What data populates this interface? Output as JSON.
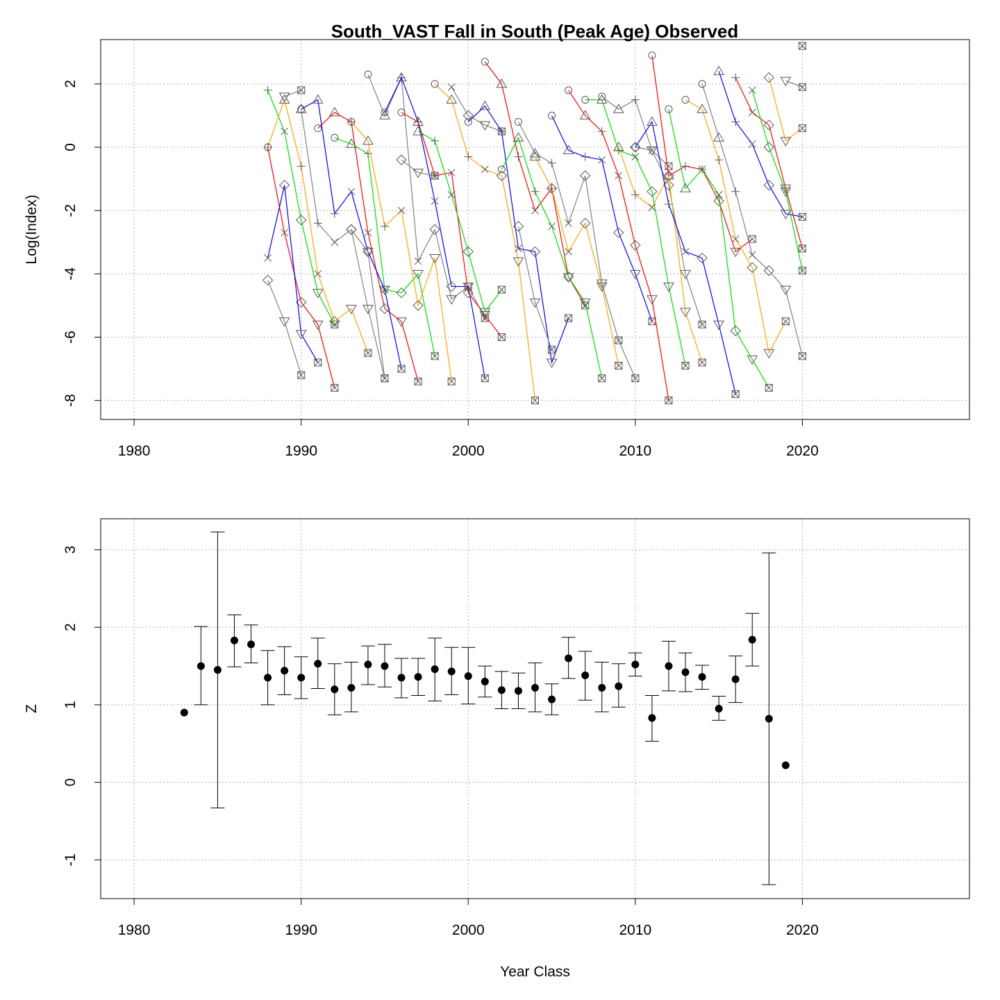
{
  "chart_data": [
    {
      "type": "line",
      "title": "South_VAST Fall in South (Peak Age) Observed",
      "xlabel": "",
      "ylabel": "Log(Index)",
      "xlim": [
        1978,
        2030
      ],
      "ylim": [
        -8.6,
        3.4
      ],
      "xticks": [
        1980,
        1990,
        2000,
        2010,
        2020
      ],
      "yticks": [
        -8,
        -6,
        -4,
        -2,
        0,
        2
      ],
      "grid": true,
      "legend": "none",
      "age_symbols": [
        "circle",
        "triangle-up",
        "plus",
        "x",
        "diamond",
        "triangle-down",
        "boxed-x"
      ],
      "colors": [
        "#ff0000",
        "#00dd00",
        "#0000ff",
        "#ffa500",
        "#808080"
      ],
      "series": [
        {
          "color": "#808080",
          "x": [
            1990,
            1991,
            1992,
            1993,
            1994,
            1995
          ],
          "y": [
            1.2,
            -2.4,
            -3.0,
            -2.6,
            -5.1,
            -7.3
          ]
        },
        {
          "color": "#ff0000",
          "x": [
            1988,
            1989,
            1990,
            1991,
            1992
          ],
          "y": [
            0.0,
            -2.7,
            -4.9,
            -5.6,
            -7.6
          ]
        },
        {
          "color": "#00dd00",
          "x": [
            1988,
            1989,
            1990,
            1991,
            1992
          ],
          "y": [
            1.8,
            0.5,
            -2.3,
            -4.6,
            -5.6
          ]
        },
        {
          "color": "#0000ff",
          "x": [
            1988,
            1989,
            1990,
            1991
          ],
          "y": [
            -3.5,
            -1.2,
            -5.9,
            -6.8
          ]
        },
        {
          "color": "#ffa500",
          "x": [
            1988,
            1989,
            1990,
            1991,
            1992,
            1993,
            1994
          ],
          "y": [
            0.0,
            1.5,
            -0.6,
            -4.0,
            -5.5,
            -5.1,
            -6.5
          ]
        },
        {
          "color": "#808080",
          "x": [
            1988,
            1989,
            1990
          ],
          "y": [
            -4.2,
            -5.5,
            -7.2
          ]
        },
        {
          "color": "#808080",
          "x": [
            1989,
            1990
          ],
          "y": [
            1.6,
            1.8
          ]
        },
        {
          "color": "#ff0000",
          "x": [
            1991,
            1992,
            1993,
            1994,
            1995,
            1996,
            1997
          ],
          "y": [
            0.6,
            1.1,
            0.8,
            -2.7,
            -5.1,
            -5.5,
            -7.4
          ]
        },
        {
          "color": "#00dd00",
          "x": [
            1992,
            1993,
            1994,
            1995,
            1996,
            1997,
            1998
          ],
          "y": [
            0.3,
            0.1,
            -0.2,
            -4.5,
            -4.6,
            -4.0,
            -6.6
          ]
        },
        {
          "color": "#0000ff",
          "x": [
            1990,
            1991,
            1992,
            1993,
            1994,
            1995,
            1996
          ],
          "y": [
            1.2,
            1.5,
            -2.1,
            -1.4,
            -3.3,
            -4.5,
            -7.0
          ]
        },
        {
          "color": "#ffa500",
          "x": [
            1993,
            1994,
            1995,
            1996,
            1997,
            1998,
            1999
          ],
          "y": [
            0.8,
            0.2,
            -2.5,
            -2.0,
            -5.0,
            -3.5,
            -7.4
          ]
        },
        {
          "color": "#808080",
          "x": [
            1993,
            1994,
            1995
          ],
          "y": [
            -2.6,
            -3.3,
            -7.3
          ]
        },
        {
          "color": "#808080",
          "x": [
            1994,
            1995,
            1996,
            1997,
            1998,
            1999,
            2000,
            2001
          ],
          "y": [
            2.3,
            1.0,
            2.2,
            -3.6,
            -2.6,
            -4.8,
            -4.4,
            -5.4
          ]
        },
        {
          "color": "#0000ff",
          "x": [
            1995,
            1996,
            1997,
            1998,
            1999,
            2000,
            2001
          ],
          "y": [
            1.1,
            2.2,
            0.8,
            -1.7,
            -4.4,
            -4.4,
            -7.3
          ]
        },
        {
          "color": "#ff0000",
          "x": [
            1996,
            1997,
            1998,
            1999,
            2000,
            2001,
            2002
          ],
          "y": [
            1.1,
            0.8,
            -0.9,
            -0.8,
            -4.6,
            -5.3,
            -6.0
          ]
        },
        {
          "color": "#00dd00",
          "x": [
            1997,
            1998,
            1999,
            2000,
            2001,
            2002
          ],
          "y": [
            0.5,
            0.2,
            -1.5,
            -3.3,
            -5.2,
            -4.5
          ]
        },
        {
          "color": "#ffa500",
          "x": [
            1998,
            1999,
            2000,
            2001,
            2002,
            2003,
            2004
          ],
          "y": [
            2.0,
            1.5,
            -0.3,
            -0.7,
            -0.9,
            -3.6,
            -8.0
          ]
        },
        {
          "color": "#808080",
          "x": [
            1996,
            1997,
            1998
          ],
          "y": [
            -0.4,
            -0.8,
            -0.9
          ]
        },
        {
          "color": "#808080",
          "x": [
            1999,
            2000,
            2001,
            2002
          ],
          "y": [
            1.9,
            1.0,
            0.7,
            0.5
          ]
        },
        {
          "color": "#0000ff",
          "x": [
            2000,
            2001,
            2002,
            2003,
            2004,
            2005,
            2006
          ],
          "y": [
            0.8,
            1.3,
            0.5,
            -3.2,
            -3.3,
            -6.8,
            -5.4
          ]
        },
        {
          "color": "#ff0000",
          "x": [
            2001,
            2002,
            2003,
            2004,
            2005,
            2006,
            2007
          ],
          "y": [
            2.7,
            2.0,
            -0.3,
            -2.0,
            -1.3,
            -4.1,
            -5.0
          ]
        },
        {
          "color": "#00dd00",
          "x": [
            2002,
            2003,
            2004,
            2005,
            2006,
            2007,
            2008
          ],
          "y": [
            -0.7,
            0.3,
            -1.4,
            -2.5,
            -4.1,
            -4.9,
            -7.3
          ]
        },
        {
          "color": "#808080",
          "x": [
            2003,
            2004,
            2005,
            2006,
            2007,
            2008,
            2009,
            2010
          ],
          "y": [
            0.8,
            -0.2,
            -0.5,
            -2.4,
            -0.9,
            -4.3,
            -6.1,
            -7.3
          ]
        },
        {
          "color": "#ffa500",
          "x": [
            2004,
            2005,
            2006,
            2007,
            2008,
            2009
          ],
          "y": [
            -0.3,
            -1.3,
            -3.3,
            -2.4,
            -4.4,
            -6.9
          ]
        },
        {
          "color": "#808080",
          "x": [
            2003,
            2004,
            2005
          ],
          "y": [
            -2.5,
            -4.9,
            -6.4
          ]
        },
        {
          "color": "#0000ff",
          "x": [
            2005,
            2006,
            2007,
            2008,
            2009,
            2010,
            2011
          ],
          "y": [
            1.0,
            -0.1,
            -0.3,
            -0.4,
            -2.7,
            -4.0,
            -5.5
          ]
        },
        {
          "color": "#ff0000",
          "x": [
            2006,
            2007,
            2008,
            2009,
            2010,
            2011,
            2012
          ],
          "y": [
            1.8,
            1.0,
            0.5,
            -0.9,
            -3.1,
            -4.8,
            -8.0
          ]
        },
        {
          "color": "#00dd00",
          "x": [
            2007,
            2008,
            2009,
            2010,
            2011,
            2012,
            2013
          ],
          "y": [
            1.5,
            1.5,
            -0.1,
            -0.3,
            -1.4,
            -4.4,
            -6.9
          ]
        },
        {
          "color": "#808080",
          "x": [
            2008,
            2009,
            2010,
            2011,
            2012,
            2013,
            2014
          ],
          "y": [
            1.6,
            1.2,
            1.5,
            -0.1,
            -1.2,
            -4.0,
            -5.6
          ]
        },
        {
          "color": "#ffa500",
          "x": [
            2009,
            2010,
            2011,
            2012,
            2013,
            2014
          ],
          "y": [
            0.0,
            -1.5,
            -1.9,
            -0.9,
            -5.2,
            -6.8
          ]
        },
        {
          "color": "#808080",
          "x": [
            2010,
            2011,
            2012
          ],
          "y": [
            0.0,
            -0.1,
            -0.6
          ]
        },
        {
          "color": "#0000ff",
          "x": [
            2010,
            2011,
            2012,
            2013,
            2014,
            2015,
            2016
          ],
          "y": [
            0.0,
            0.8,
            -1.8,
            -3.3,
            -3.5,
            -5.6,
            -7.8
          ]
        },
        {
          "color": "#ff0000",
          "x": [
            2011,
            2012,
            2013,
            2014,
            2015,
            2016,
            2017
          ],
          "y": [
            2.9,
            -0.9,
            -0.6,
            -0.7,
            -1.7,
            -3.3,
            -2.9
          ]
        },
        {
          "color": "#00dd00",
          "x": [
            2012,
            2013,
            2014,
            2015,
            2016,
            2017,
            2018
          ],
          "y": [
            1.2,
            -1.3,
            -0.7,
            -1.5,
            -5.8,
            -6.7,
            -7.6
          ]
        },
        {
          "color": "#ffa500",
          "x": [
            2013,
            2014,
            2015,
            2016,
            2017,
            2018,
            2019
          ],
          "y": [
            1.5,
            1.2,
            -0.4,
            -2.9,
            -3.8,
            -6.5,
            -5.5
          ]
        },
        {
          "color": "#808080",
          "x": [
            2014,
            2015,
            2016,
            2017,
            2018,
            2019,
            2020
          ],
          "y": [
            2.0,
            0.3,
            -1.4,
            -3.4,
            -3.9,
            -4.5,
            -6.6
          ]
        },
        {
          "color": "#0000ff",
          "x": [
            2015,
            2016,
            2017,
            2018,
            2019,
            2020
          ],
          "y": [
            2.4,
            0.8,
            0.1,
            -1.2,
            -2.1,
            -2.2
          ]
        },
        {
          "color": "#ff0000",
          "x": [
            2016,
            2017,
            2018,
            2019,
            2020
          ],
          "y": [
            2.2,
            1.1,
            0.7,
            -1.3,
            -3.2
          ]
        },
        {
          "color": "#00dd00",
          "x": [
            2017,
            2018,
            2019,
            2020
          ],
          "y": [
            1.8,
            0.0,
            -1.4,
            -3.9
          ]
        },
        {
          "color": "#ffa500",
          "x": [
            2018,
            2019,
            2020
          ],
          "y": [
            2.2,
            0.2,
            0.6
          ]
        },
        {
          "color": "#808080",
          "x": [
            2019,
            2020
          ],
          "y": [
            2.1,
            1.9
          ]
        },
        {
          "color": "#808080",
          "x": [
            2020
          ],
          "y": [
            3.2
          ]
        }
      ]
    },
    {
      "type": "scatter",
      "title": "",
      "xlabel": "Year Class",
      "ylabel": "Z",
      "xlim": [
        1978,
        2030
      ],
      "ylim": [
        -1.5,
        3.4
      ],
      "xticks": [
        1980,
        1990,
        2000,
        2010,
        2020
      ],
      "yticks": [
        -1,
        0,
        1,
        2,
        3
      ],
      "grid": true,
      "x": [
        1983,
        1984,
        1985,
        1986,
        1987,
        1988,
        1989,
        1990,
        1991,
        1992,
        1993,
        1994,
        1995,
        1996,
        1997,
        1998,
        1999,
        2000,
        2001,
        2002,
        2003,
        2004,
        2005,
        2006,
        2007,
        2008,
        2009,
        2010,
        2011,
        2012,
        2013,
        2014,
        2015,
        2016,
        2017,
        2018,
        2019
      ],
      "y": [
        0.9,
        1.5,
        1.45,
        1.83,
        1.78,
        1.35,
        1.44,
        1.35,
        1.53,
        1.2,
        1.22,
        1.52,
        1.5,
        1.35,
        1.36,
        1.46,
        1.43,
        1.37,
        1.3,
        1.19,
        1.18,
        1.22,
        1.07,
        1.6,
        1.38,
        1.22,
        1.24,
        1.52,
        0.83,
        1.5,
        1.42,
        1.36,
        0.95,
        1.33,
        1.84,
        0.82,
        0.22
      ],
      "lower": [
        null,
        1.0,
        -0.33,
        1.49,
        1.54,
        1.0,
        1.13,
        1.08,
        1.21,
        0.87,
        0.91,
        1.26,
        1.23,
        1.09,
        1.12,
        1.05,
        1.13,
        1.01,
        1.1,
        0.95,
        0.95,
        0.91,
        0.87,
        1.34,
        1.06,
        0.91,
        0.97,
        1.37,
        0.53,
        1.18,
        1.17,
        1.2,
        0.8,
        1.03,
        1.5,
        -1.32,
        null
      ],
      "upper": [
        null,
        2.01,
        3.23,
        2.16,
        2.03,
        1.7,
        1.75,
        1.62,
        1.86,
        1.53,
        1.55,
        1.76,
        1.78,
        1.6,
        1.6,
        1.86,
        1.74,
        1.74,
        1.5,
        1.43,
        1.41,
        1.54,
        1.27,
        1.87,
        1.69,
        1.55,
        1.53,
        1.67,
        1.12,
        1.82,
        1.67,
        1.51,
        1.11,
        1.63,
        2.18,
        2.96,
        null
      ]
    }
  ]
}
